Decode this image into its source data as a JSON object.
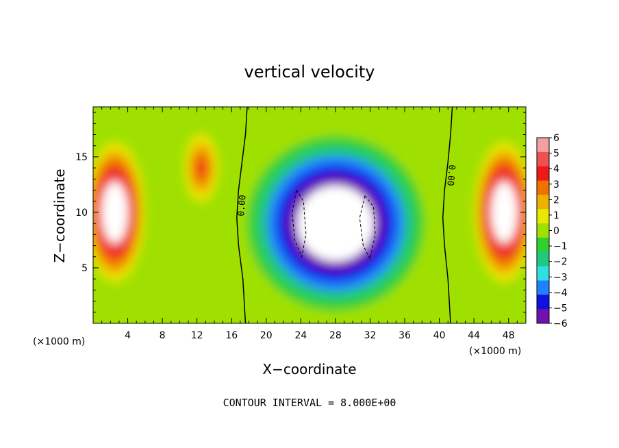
{
  "chart_data": {
    "type": "heatmap",
    "title": "vertical velocity",
    "xlabel": "X−coordinate",
    "ylabel": "Z−coordinate",
    "x_unit": "(×1000 m)",
    "x_unit_right": "(×1000 m)",
    "footnote": "CONTOUR INTERVAL = 8.000E+00",
    "xlim": [
      0,
      50
    ],
    "ylim": [
      0,
      19.5
    ],
    "x_ticks": [
      4,
      8,
      12,
      16,
      20,
      24,
      28,
      32,
      36,
      40,
      44,
      48
    ],
    "y_ticks": [
      5,
      10,
      15
    ],
    "contour_label_1": "0.00",
    "contour_label_2": "0.00",
    "colorbar": {
      "levels": [
        6,
        5,
        4,
        3,
        2,
        1,
        0,
        -1,
        -2,
        -3,
        -4,
        -5,
        -6
      ],
      "tick_labels": [
        "6",
        "5",
        "4",
        "3",
        "2",
        "1",
        "0",
        "−1",
        "−2",
        "−3",
        "−4",
        "−5",
        "−6"
      ],
      "colors": [
        "#f4a0a0",
        "#f05050",
        "#f01818",
        "#f07000",
        "#f0b000",
        "#e8e800",
        "#a0e000",
        "#30d030",
        "#20c880",
        "#30e0e0",
        "#2080ff",
        "#1010e0",
        "#7010b0"
      ]
    },
    "features": [
      {
        "kind": "updraft",
        "x": 2.5,
        "z": 10.0,
        "sx": 2.2,
        "sz": 4.0,
        "w": 9.0
      },
      {
        "kind": "updraft",
        "x": 12.5,
        "z": 14.0,
        "sx": 1.4,
        "sz": 2.2,
        "w": 5.0
      },
      {
        "kind": "updraft",
        "x": 47.5,
        "z": 10.0,
        "sx": 2.2,
        "sz": 4.0,
        "w": 9.0
      },
      {
        "kind": "downdraft",
        "x": 28.0,
        "z": 9.0,
        "sx": 6.5,
        "sz": 5.0,
        "w": -10.0
      }
    ],
    "contours": [
      {
        "name": "zero-line-left",
        "x": [
          17.8,
          17.6,
          17.2,
          16.8,
          16.6,
          16.8,
          17.3,
          17.6
        ],
        "z": [
          19.5,
          17.0,
          14.5,
          12.0,
          9.5,
          7.0,
          4.0,
          0.0
        ]
      },
      {
        "name": "zero-line-right",
        "x": [
          41.5,
          41.3,
          41.0,
          40.6,
          40.4,
          40.6,
          41.0,
          41.3
        ],
        "z": [
          19.5,
          17.0,
          14.5,
          12.0,
          9.5,
          7.0,
          4.0,
          0.0
        ]
      },
      {
        "name": "negative-dashed-left",
        "x": [
          23.5,
          24.3,
          24.6,
          24.1,
          23.3,
          23.0,
          23.5
        ],
        "z": [
          12.0,
          11.0,
          8.0,
          6.0,
          7.5,
          10.0,
          12.0
        ]
      },
      {
        "name": "negative-dashed-right",
        "x": [
          31.4,
          32.4,
          32.6,
          32.0,
          31.2,
          30.8,
          31.4
        ],
        "z": [
          11.5,
          10.5,
          8.0,
          5.8,
          7.0,
          9.5,
          11.5
        ]
      }
    ]
  }
}
